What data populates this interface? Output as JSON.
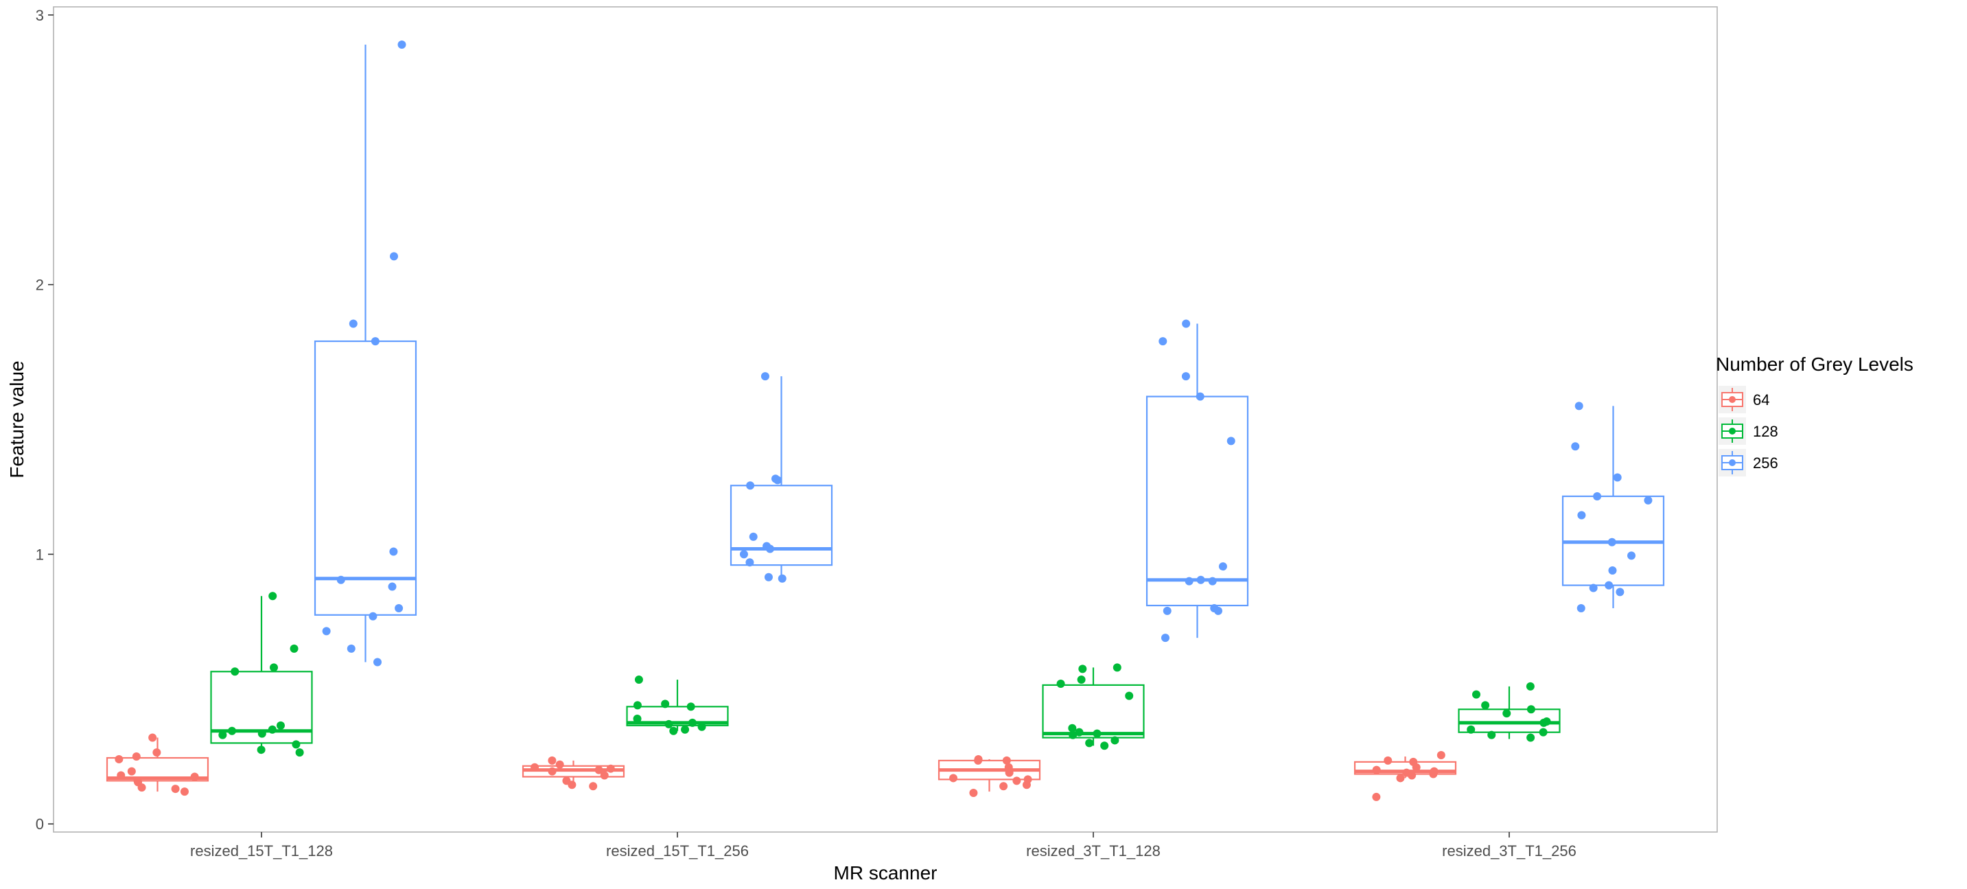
{
  "chart_data": {
    "type": "boxplot",
    "title": "",
    "xlabel": "MR scanner",
    "ylabel": "Feature value",
    "ylim": [
      -0.03,
      3.03
    ],
    "y_ticks": [
      "0",
      "1",
      "2",
      "3"
    ],
    "y_tick_values": [
      0,
      1,
      2,
      3
    ],
    "categories": [
      "resized_15T_T1_128",
      "resized_15T_T1_256",
      "resized_3T_T1_128",
      "resized_3T_T1_256"
    ],
    "grid": false,
    "legend": {
      "title": "Number of Grey Levels",
      "placement": "right",
      "items": [
        "64",
        "128",
        "256"
      ]
    },
    "series": [
      {
        "name": "64",
        "color": "#F8766D",
        "boxes": [
          {
            "whisker_low": 0.12,
            "q1": 0.16,
            "median": 0.17,
            "q3": 0.245,
            "whisker_high": 0.32,
            "points": [
              0.32,
              0.265,
              0.25,
              0.24,
              0.195,
              0.18,
              0.175,
              0.16,
              0.155,
              0.135,
              0.13,
              0.12
            ]
          },
          {
            "whisker_low": 0.145,
            "q1": 0.175,
            "median": 0.2,
            "q3": 0.215,
            "whisker_high": 0.235,
            "points": [
              0.235,
              0.22,
              0.21,
              0.205,
              0.2,
              0.195,
              0.18,
              0.16,
              0.145,
              0.14
            ]
          },
          {
            "whisker_low": 0.12,
            "q1": 0.165,
            "median": 0.2,
            "q3": 0.235,
            "whisker_high": 0.24,
            "points": [
              0.24,
              0.235,
              0.235,
              0.21,
              0.19,
              0.17,
              0.165,
              0.16,
              0.145,
              0.14,
              0.115
            ]
          },
          {
            "whisker_low": 0.17,
            "q1": 0.185,
            "median": 0.195,
            "q3": 0.23,
            "whisker_high": 0.25,
            "points": [
              0.255,
              0.235,
              0.23,
              0.21,
              0.2,
              0.195,
              0.19,
              0.185,
              0.18,
              0.17,
              0.1
            ]
          }
        ]
      },
      {
        "name": "128",
        "color": "#00BA38",
        "boxes": [
          {
            "whisker_low": 0.265,
            "q1": 0.3,
            "median": 0.345,
            "q3": 0.565,
            "whisker_high": 0.845,
            "points": [
              0.845,
              0.65,
              0.58,
              0.565,
              0.365,
              0.35,
              0.345,
              0.335,
              0.33,
              0.295,
              0.275,
              0.265
            ]
          },
          {
            "whisker_low": 0.345,
            "q1": 0.365,
            "median": 0.375,
            "q3": 0.435,
            "whisker_high": 0.535,
            "points": [
              0.535,
              0.445,
              0.44,
              0.435,
              0.39,
              0.375,
              0.37,
              0.36,
              0.35,
              0.345
            ]
          },
          {
            "whisker_low": 0.29,
            "q1": 0.32,
            "median": 0.335,
            "q3": 0.515,
            "whisker_high": 0.58,
            "points": [
              0.58,
              0.575,
              0.535,
              0.52,
              0.475,
              0.355,
              0.34,
              0.335,
              0.33,
              0.31,
              0.3,
              0.29
            ]
          },
          {
            "whisker_low": 0.315,
            "q1": 0.34,
            "median": 0.375,
            "q3": 0.425,
            "whisker_high": 0.51,
            "points": [
              0.51,
              0.48,
              0.44,
              0.425,
              0.41,
              0.38,
              0.375,
              0.35,
              0.34,
              0.33,
              0.32
            ]
          }
        ]
      },
      {
        "name": "256",
        "color": "#619CFF",
        "boxes": [
          {
            "whisker_low": 0.6,
            "q1": 0.775,
            "median": 0.91,
            "q3": 1.79,
            "whisker_high": 2.89,
            "points": [
              2.89,
              2.105,
              1.855,
              1.79,
              1.01,
              0.905,
              0.88,
              0.8,
              0.77,
              0.715,
              0.65,
              0.6
            ]
          },
          {
            "whisker_low": 0.91,
            "q1": 0.96,
            "median": 1.02,
            "q3": 1.255,
            "whisker_high": 1.66,
            "points": [
              1.66,
              1.28,
              1.275,
              1.255,
              1.065,
              1.03,
              1.02,
              1.0,
              0.97,
              0.915,
              0.91
            ]
          },
          {
            "whisker_low": 0.69,
            "q1": 0.81,
            "median": 0.905,
            "q3": 1.585,
            "whisker_high": 1.855,
            "points": [
              1.855,
              1.79,
              1.66,
              1.585,
              1.42,
              0.955,
              0.905,
              0.9,
              0.9,
              0.8,
              0.79,
              0.79,
              0.69
            ]
          },
          {
            "whisker_low": 0.8,
            "q1": 0.885,
            "median": 1.045,
            "q3": 1.215,
            "whisker_high": 1.55,
            "points": [
              1.55,
              1.4,
              1.285,
              1.215,
              1.2,
              1.145,
              1.045,
              0.995,
              0.94,
              0.885,
              0.875,
              0.86,
              0.8
            ]
          }
        ]
      }
    ]
  }
}
